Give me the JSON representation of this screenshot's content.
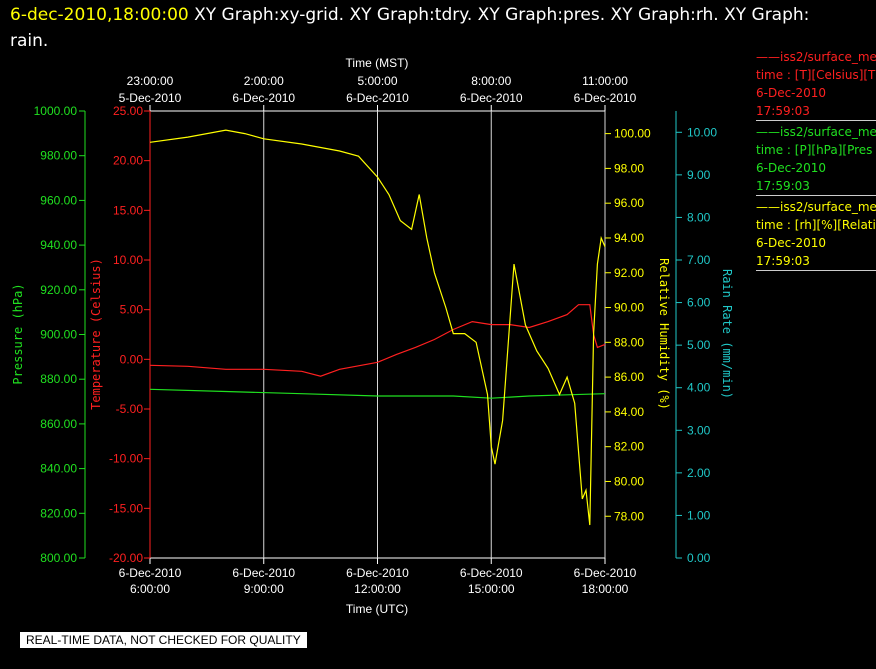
{
  "header": {
    "date": "6-dec-2010,18:00:00",
    "graphs": "XY Graph:xy-grid.  XY Graph:tdry.  XY Graph:pres.  XY Graph:rh.  XY Graph: rain."
  },
  "legend": [
    {
      "line1": "iss2/surface_me",
      "line2": "time : [T][Celsius][T",
      "line3": "6-Dec-2010",
      "line4": "17:59:03",
      "color": "#ff2020"
    },
    {
      "line1": "iss2/surface_me",
      "line2": "time : [P][hPa][Pres",
      "line3": "6-Dec-2010",
      "line4": "17:59:03",
      "color": "#20e020"
    },
    {
      "line1": "iss2/surface_me",
      "line2": "time : [rh][%][Relati",
      "line3": "6-Dec-2010",
      "line4": "17:59:03",
      "color": "#ffff00"
    }
  ],
  "banner": "REAL-TIME DATA, NOT CHECKED FOR QUALITY",
  "chart_data": {
    "type": "line",
    "top_axis": {
      "label": "Time (MST)",
      "ticks": [
        {
          "time": "23:00:00",
          "date": "5-Dec-2010"
        },
        {
          "time": "2:00:00",
          "date": "6-Dec-2010"
        },
        {
          "time": "5:00:00",
          "date": "6-Dec-2010"
        },
        {
          "time": "8:00:00",
          "date": "6-Dec-2010"
        },
        {
          "time": "11:00:00",
          "date": "6-Dec-2010"
        }
      ]
    },
    "bottom_axis": {
      "label": "Time (UTC)",
      "ticks": [
        {
          "date": "6-Dec-2010",
          "time": "6:00:00"
        },
        {
          "date": "6-Dec-2010",
          "time": "9:00:00"
        },
        {
          "date": "6-Dec-2010",
          "time": "12:00:00"
        },
        {
          "date": "6-Dec-2010",
          "time": "15:00:00"
        },
        {
          "date": "6-Dec-2010",
          "time": "18:00:00"
        }
      ],
      "xlim_hours_utc": [
        6,
        18
      ],
      "grid_hours_utc": [
        9,
        12,
        15,
        18
      ]
    },
    "axes": {
      "pressure": {
        "label": "Pressure (hPa)",
        "color": "#20e020",
        "ylim": [
          800,
          1000
        ],
        "ticks": [
          "1000.00",
          "980.00",
          "960.00",
          "940.00",
          "920.00",
          "900.00",
          "880.00",
          "860.00",
          "840.00",
          "820.00",
          "800.00"
        ]
      },
      "temperature": {
        "label": "Temperature (Celsius)",
        "color": "#ff2020",
        "ylim": [
          -20,
          25
        ],
        "ticks": [
          "25.00",
          "20.00",
          "15.00",
          "10.00",
          "5.00",
          "0.00",
          "-5.00",
          "-10.00",
          "-15.00",
          "-20.00"
        ]
      },
      "rh": {
        "label": "Relative Humidity (%)",
        "color": "#ffff00",
        "ylim": [
          75.6,
          101.3
        ],
        "ticks": [
          "100.00",
          "98.00",
          "96.00",
          "94.00",
          "92.00",
          "90.00",
          "88.00",
          "86.00",
          "84.00",
          "82.00",
          "80.00",
          "78.00"
        ]
      },
      "rain": {
        "label": "Rain Rate (mm/min)",
        "color": "#20c8c8",
        "ylim": [
          0,
          10.5
        ],
        "ticks": [
          "10.00",
          "9.00",
          "8.00",
          "7.00",
          "6.00",
          "5.00",
          "4.00",
          "3.00",
          "2.00",
          "1.00",
          "0.00"
        ]
      }
    },
    "series": [
      {
        "name": "T",
        "axis": "temperature",
        "x": [
          6,
          7,
          8,
          9,
          10,
          10.5,
          11,
          12,
          12.5,
          13,
          13.5,
          14,
          14.5,
          15,
          15.5,
          16,
          16.5,
          17,
          17.3,
          17.6,
          17.7,
          17.8,
          18
        ],
        "y": [
          -0.6,
          -0.7,
          -1.0,
          -1.0,
          -1.2,
          -1.7,
          -1.0,
          -0.3,
          0.5,
          1.2,
          2.0,
          3.0,
          3.8,
          3.5,
          3.5,
          3.2,
          3.8,
          4.5,
          5.5,
          5.5,
          2.5,
          1.2,
          1.5
        ]
      },
      {
        "name": "P",
        "axis": "pressure",
        "x": [
          6,
          8,
          10,
          12,
          14,
          15,
          16,
          17,
          18
        ],
        "y": [
          875.5,
          874.5,
          873.5,
          872.5,
          872.5,
          871.5,
          872.5,
          873,
          873.5
        ]
      },
      {
        "name": "rh",
        "axis": "rh",
        "x": [
          6,
          7,
          8,
          8.5,
          9,
          10,
          11,
          11.5,
          12,
          12.3,
          12.6,
          12.9,
          13.1,
          13.3,
          13.5,
          13.8,
          14,
          14.3,
          14.6,
          14.9,
          15,
          15.1,
          15.3,
          15.6,
          15.9,
          16.2,
          16.5,
          16.8,
          17,
          17.2,
          17.4,
          17.5,
          17.6,
          17.7,
          17.8,
          17.9,
          18
        ],
        "y": [
          99.5,
          99.8,
          100.2,
          100.0,
          99.7,
          99.4,
          99.0,
          98.7,
          97.5,
          96.5,
          95.0,
          94.5,
          96.5,
          94.0,
          92.0,
          90.0,
          88.5,
          88.5,
          88.0,
          85.0,
          82.0,
          81.0,
          83.5,
          92.5,
          89.0,
          87.5,
          86.5,
          85.0,
          86.0,
          84.5,
          79.0,
          79.5,
          77.5,
          88.5,
          92.5,
          94.0,
          93.5
        ]
      }
    ]
  }
}
